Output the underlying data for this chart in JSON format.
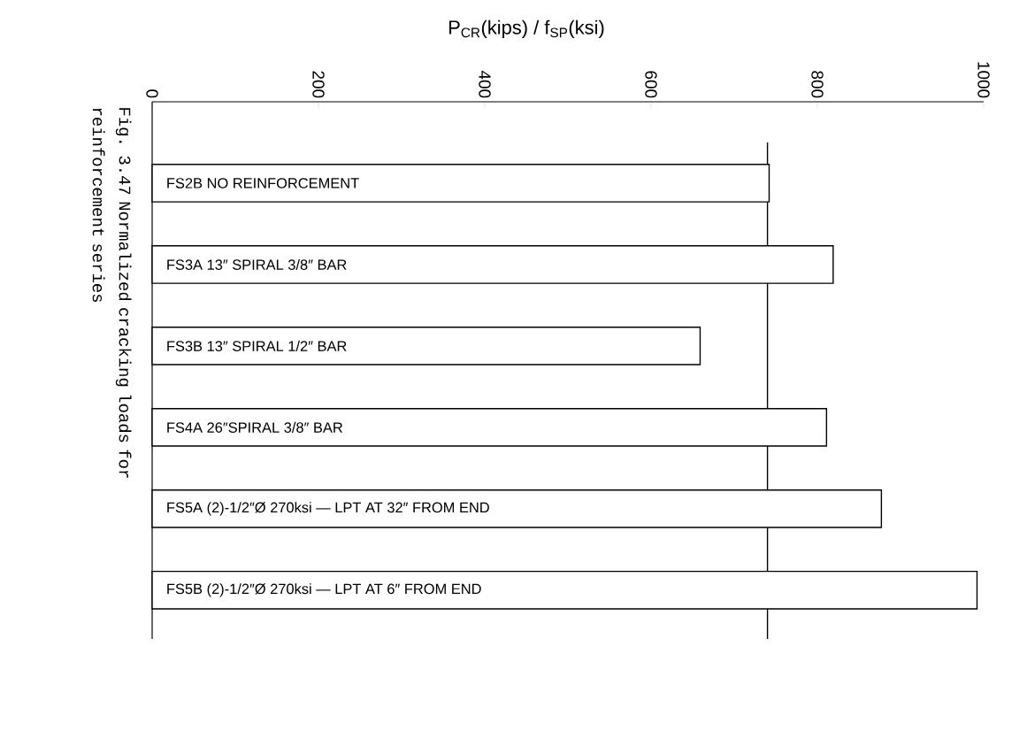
{
  "chart_data": {
    "type": "bar",
    "orientation": "horizontal",
    "title": "P$_{CR}$(kips) / f$_{SP}$(ksi)",
    "categories": [
      "FS2B  NO REINFORCEMENT",
      "FS3A  13″ SPIRAL   3/8″ BAR",
      "FS3B  13″ SPIRAL   1/2″ BAR",
      "FS4A  26″SPIRAL   3/8″ BAR",
      "FS5A  (2)-1/2″Ø  270ksi — LPT AT 32″ FROM END",
      "FS5B  (2)-1/2″Ø  270ksi — LPT AT 6″ FROM END"
    ],
    "values": [
      742,
      819,
      659,
      811,
      877,
      992
    ],
    "color": "#ffffff",
    "xlim": [
      0,
      1000
    ],
    "xticks": [
      0,
      200,
      400,
      600,
      800,
      1000
    ],
    "ref_lines": [
      {
        "axis": "x",
        "value": 740,
        "color": "#000000"
      }
    ],
    "annotations": [
      "Fig. 3.47  Normalized cracking loads for reinforcement series"
    ]
  }
}
